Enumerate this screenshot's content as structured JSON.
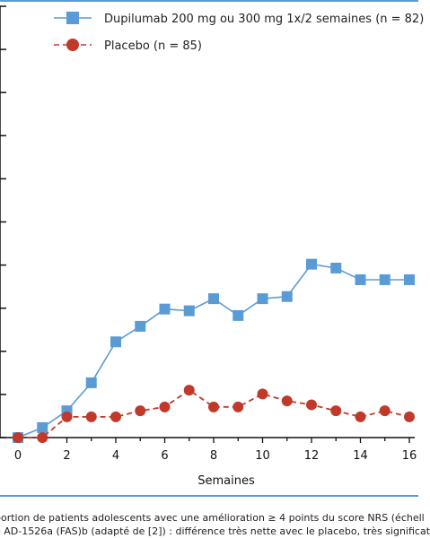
{
  "chart_data": {
    "type": "line",
    "xlabel": "Semaines",
    "ylabel": "",
    "xlim": [
      0,
      16
    ],
    "ylim": [
      0,
      100
    ],
    "x_ticks": [
      0,
      2,
      4,
      6,
      8,
      10,
      12,
      14,
      16
    ],
    "x_tick_labels": [
      "0",
      "2",
      "4",
      "6",
      "8",
      "10",
      "12",
      "14",
      "16"
    ],
    "y_ticks": [
      0,
      10,
      20,
      30,
      40,
      50,
      60,
      70,
      80,
      90,
      100
    ],
    "grid": false,
    "legend_position": "top",
    "series": [
      {
        "name": "Dupilumab 200 mg ou 300 mg 1x/2 semaines (n = 82)",
        "color": "#5b9bd5",
        "line_style": "solid",
        "marker": "square",
        "x": [
          0,
          1,
          2,
          3,
          4,
          5,
          6,
          7,
          8,
          9,
          10,
          11,
          12,
          13,
          14,
          15,
          16
        ],
        "y": [
          0,
          2.3,
          6.2,
          12.7,
          22.2,
          25.8,
          29.8,
          29.4,
          32.2,
          28.3,
          32.2,
          32.7,
          40.2,
          39.3,
          36.6,
          36.6,
          36.6
        ]
      },
      {
        "name": "Placebo (n = 85)",
        "color": "#c0392b",
        "line_style": "dashed",
        "marker": "circle",
        "x": [
          0,
          1,
          2,
          3,
          4,
          5,
          6,
          7,
          8,
          9,
          10,
          11,
          12,
          13,
          14,
          15,
          16
        ],
        "y": [
          0,
          0,
          4.8,
          4.8,
          4.8,
          6.2,
          7.1,
          11.0,
          7.1,
          7.1,
          10.1,
          8.5,
          7.6,
          6.2,
          4.8,
          6.2,
          4.8
        ]
      }
    ]
  },
  "caption": {
    "line1": "portion de patients adolescents avec une amélioration ≥ 4 points du score NRS (échell",
    "line2": "e AD-1526a (FAS)b (adapté de [2]) : différence très nette avec le placebo, très significat"
  }
}
